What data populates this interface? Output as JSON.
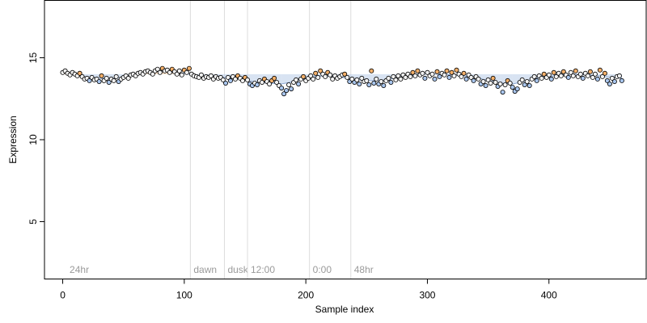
{
  "chart_data": {
    "type": "scatter",
    "title": "",
    "xlabel": "Sample index",
    "ylabel": "Expression",
    "xlim": [
      -15,
      480
    ],
    "ylim": [
      1.5,
      18.5
    ],
    "x_ticks": [
      0,
      100,
      200,
      300,
      400
    ],
    "y_ticks": [
      5,
      10,
      15
    ],
    "grid": false,
    "legend": "none",
    "colors": {
      "above_trend": "#f4b06a",
      "below_trend": "#a9c6ee",
      "neutral": "#f2f2f2",
      "trend_fill": "#b8cce8",
      "marker_edge": "#000000",
      "phase_line": "#dcdcdc",
      "phase_text": "#9a9a9a"
    },
    "phase_markers": [
      {
        "x": 3,
        "label": "24hr",
        "line": false
      },
      {
        "x": 105,
        "label": "dawn",
        "line": true
      },
      {
        "x": 133,
        "label": "dusk",
        "line": true
      },
      {
        "x": 152,
        "label": "12:00",
        "line": true
      },
      {
        "x": 203,
        "label": "0:00",
        "line": true
      },
      {
        "x": 237,
        "label": "48hr",
        "line": true
      }
    ],
    "trend": [
      [
        0,
        14.1
      ],
      [
        10,
        13.95
      ],
      [
        20,
        13.8
      ],
      [
        30,
        13.75
      ],
      [
        40,
        13.7
      ],
      [
        50,
        13.8
      ],
      [
        60,
        14.0
      ],
      [
        70,
        14.1
      ],
      [
        80,
        14.2
      ],
      [
        90,
        14.1
      ],
      [
        100,
        14.05
      ],
      [
        110,
        13.9
      ],
      [
        120,
        13.85
      ],
      [
        130,
        13.8
      ],
      [
        140,
        13.75
      ],
      [
        150,
        13.65
      ],
      [
        160,
        13.5
      ],
      [
        170,
        13.45
      ],
      [
        180,
        13.4
      ],
      [
        190,
        13.55
      ],
      [
        200,
        13.7
      ],
      [
        210,
        13.9
      ],
      [
        220,
        13.85
      ],
      [
        230,
        13.8
      ],
      [
        240,
        13.65
      ],
      [
        250,
        13.6
      ],
      [
        260,
        13.6
      ],
      [
        270,
        13.7
      ],
      [
        280,
        13.85
      ],
      [
        290,
        13.95
      ],
      [
        300,
        14.0
      ],
      [
        310,
        14.0
      ],
      [
        320,
        13.95
      ],
      [
        330,
        13.9
      ],
      [
        340,
        13.8
      ],
      [
        350,
        13.6
      ],
      [
        360,
        13.45
      ],
      [
        370,
        13.4
      ],
      [
        380,
        13.55
      ],
      [
        390,
        13.75
      ],
      [
        400,
        13.85
      ],
      [
        410,
        13.95
      ],
      [
        420,
        14.0
      ],
      [
        430,
        13.95
      ],
      [
        440,
        13.9
      ],
      [
        450,
        13.8
      ],
      [
        460,
        13.75
      ]
    ],
    "points": [
      [
        0,
        14.1
      ],
      [
        2,
        14.2
      ],
      [
        4,
        14.05
      ],
      [
        6,
        13.95
      ],
      [
        8,
        14.1
      ],
      [
        10,
        14.0
      ],
      [
        12,
        13.9
      ],
      [
        14,
        14.05
      ],
      [
        16,
        13.85
      ],
      [
        18,
        13.7
      ],
      [
        20,
        13.75
      ],
      [
        22,
        13.6
      ],
      [
        24,
        13.8
      ],
      [
        26,
        13.65
      ],
      [
        28,
        13.7
      ],
      [
        30,
        13.55
      ],
      [
        32,
        13.9
      ],
      [
        34,
        13.6
      ],
      [
        36,
        13.75
      ],
      [
        38,
        13.5
      ],
      [
        40,
        13.7
      ],
      [
        42,
        13.6
      ],
      [
        44,
        13.85
      ],
      [
        46,
        13.55
      ],
      [
        48,
        13.7
      ],
      [
        50,
        13.8
      ],
      [
        52,
        13.9
      ],
      [
        54,
        13.75
      ],
      [
        56,
        13.95
      ],
      [
        58,
        14.0
      ],
      [
        60,
        13.9
      ],
      [
        62,
        14.05
      ],
      [
        64,
        14.1
      ],
      [
        66,
        14.0
      ],
      [
        68,
        14.15
      ],
      [
        70,
        14.2
      ],
      [
        72,
        14.1
      ],
      [
        74,
        14.0
      ],
      [
        76,
        14.2
      ],
      [
        78,
        14.3
      ],
      [
        80,
        14.1
      ],
      [
        82,
        14.35
      ],
      [
        84,
        14.2
      ],
      [
        86,
        14.25
      ],
      [
        88,
        14.1
      ],
      [
        90,
        14.3
      ],
      [
        92,
        14.15
      ],
      [
        94,
        14.0
      ],
      [
        96,
        14.2
      ],
      [
        98,
        13.95
      ],
      [
        100,
        14.25
      ],
      [
        102,
        14.1
      ],
      [
        104,
        14.35
      ],
      [
        106,
        14.0
      ],
      [
        108,
        13.9
      ],
      [
        110,
        13.85
      ],
      [
        112,
        13.8
      ],
      [
        114,
        13.95
      ],
      [
        116,
        13.75
      ],
      [
        118,
        13.85
      ],
      [
        120,
        13.8
      ],
      [
        122,
        13.9
      ],
      [
        124,
        13.7
      ],
      [
        126,
        13.85
      ],
      [
        128,
        13.75
      ],
      [
        130,
        13.8
      ],
      [
        132,
        13.65
      ],
      [
        134,
        13.45
      ],
      [
        136,
        13.8
      ],
      [
        138,
        13.6
      ],
      [
        140,
        13.85
      ],
      [
        142,
        13.7
      ],
      [
        144,
        13.9
      ],
      [
        146,
        13.75
      ],
      [
        148,
        13.6
      ],
      [
        150,
        13.8
      ],
      [
        152,
        13.65
      ],
      [
        154,
        13.4
      ],
      [
        156,
        13.3
      ],
      [
        158,
        13.45
      ],
      [
        160,
        13.35
      ],
      [
        162,
        13.6
      ],
      [
        164,
        13.5
      ],
      [
        166,
        13.7
      ],
      [
        168,
        13.55
      ],
      [
        170,
        13.4
      ],
      [
        172,
        13.6
      ],
      [
        174,
        13.75
      ],
      [
        176,
        13.5
      ],
      [
        178,
        13.3
      ],
      [
        180,
        13.15
      ],
      [
        182,
        12.8
      ],
      [
        184,
        13.0
      ],
      [
        186,
        13.35
      ],
      [
        188,
        13.1
      ],
      [
        190,
        13.5
      ],
      [
        192,
        13.65
      ],
      [
        194,
        13.4
      ],
      [
        196,
        13.7
      ],
      [
        198,
        13.85
      ],
      [
        200,
        13.6
      ],
      [
        202,
        13.75
      ],
      [
        204,
        13.9
      ],
      [
        206,
        13.7
      ],
      [
        208,
        14.05
      ],
      [
        210,
        13.8
      ],
      [
        212,
        14.2
      ],
      [
        214,
        14.0
      ],
      [
        216,
        13.85
      ],
      [
        218,
        14.1
      ],
      [
        220,
        13.95
      ],
      [
        222,
        13.7
      ],
      [
        224,
        13.9
      ],
      [
        226,
        13.75
      ],
      [
        228,
        13.85
      ],
      [
        230,
        13.95
      ],
      [
        232,
        14.0
      ],
      [
        234,
        13.8
      ],
      [
        236,
        13.55
      ],
      [
        238,
        13.7
      ],
      [
        240,
        13.5
      ],
      [
        242,
        13.65
      ],
      [
        244,
        13.4
      ],
      [
        246,
        13.75
      ],
      [
        248,
        13.55
      ],
      [
        250,
        13.6
      ],
      [
        252,
        13.35
      ],
      [
        254,
        14.2
      ],
      [
        256,
        13.45
      ],
      [
        258,
        13.7
      ],
      [
        260,
        13.4
      ],
      [
        262,
        13.55
      ],
      [
        264,
        13.3
      ],
      [
        266,
        13.6
      ],
      [
        268,
        13.75
      ],
      [
        270,
        13.5
      ],
      [
        272,
        13.85
      ],
      [
        274,
        13.65
      ],
      [
        276,
        13.9
      ],
      [
        278,
        13.7
      ],
      [
        280,
        13.95
      ],
      [
        282,
        13.8
      ],
      [
        284,
        14.0
      ],
      [
        286,
        13.85
      ],
      [
        288,
        14.1
      ],
      [
        290,
        13.9
      ],
      [
        292,
        14.2
      ],
      [
        294,
        13.95
      ],
      [
        296,
        14.05
      ],
      [
        298,
        13.75
      ],
      [
        300,
        14.1
      ],
      [
        302,
        13.9
      ],
      [
        304,
        14.0
      ],
      [
        306,
        13.7
      ],
      [
        308,
        14.15
      ],
      [
        310,
        13.85
      ],
      [
        312,
        14.05
      ],
      [
        314,
        13.95
      ],
      [
        316,
        14.2
      ],
      [
        318,
        13.8
      ],
      [
        320,
        14.1
      ],
      [
        322,
        13.9
      ],
      [
        324,
        14.25
      ],
      [
        326,
        14.0
      ],
      [
        328,
        13.85
      ],
      [
        330,
        14.05
      ],
      [
        332,
        13.7
      ],
      [
        334,
        13.95
      ],
      [
        336,
        13.8
      ],
      [
        338,
        13.6
      ],
      [
        340,
        13.85
      ],
      [
        342,
        13.7
      ],
      [
        344,
        13.4
      ],
      [
        346,
        13.55
      ],
      [
        348,
        13.3
      ],
      [
        350,
        13.65
      ],
      [
        352,
        13.45
      ],
      [
        354,
        13.75
      ],
      [
        356,
        13.5
      ],
      [
        358,
        13.25
      ],
      [
        360,
        13.4
      ],
      [
        362,
        12.9
      ],
      [
        364,
        13.35
      ],
      [
        366,
        13.6
      ],
      [
        368,
        13.45
      ],
      [
        370,
        13.2
      ],
      [
        372,
        12.95
      ],
      [
        374,
        13.1
      ],
      [
        376,
        13.5
      ],
      [
        378,
        13.65
      ],
      [
        380,
        13.35
      ],
      [
        382,
        13.55
      ],
      [
        384,
        13.3
      ],
      [
        386,
        13.7
      ],
      [
        388,
        13.85
      ],
      [
        390,
        13.6
      ],
      [
        392,
        13.9
      ],
      [
        394,
        13.75
      ],
      [
        396,
        14.0
      ],
      [
        398,
        13.8
      ],
      [
        400,
        13.95
      ],
      [
        402,
        13.7
      ],
      [
        404,
        14.1
      ],
      [
        406,
        13.85
      ],
      [
        408,
        14.05
      ],
      [
        410,
        13.9
      ],
      [
        412,
        14.15
      ],
      [
        414,
        13.95
      ],
      [
        416,
        13.8
      ],
      [
        418,
        14.1
      ],
      [
        420,
        13.9
      ],
      [
        422,
        14.2
      ],
      [
        424,
        13.85
      ],
      [
        426,
        14.0
      ],
      [
        428,
        13.75
      ],
      [
        430,
        14.05
      ],
      [
        432,
        13.9
      ],
      [
        434,
        14.15
      ],
      [
        436,
        13.8
      ],
      [
        438,
        14.0
      ],
      [
        440,
        13.7
      ],
      [
        442,
        14.25
      ],
      [
        444,
        13.85
      ],
      [
        446,
        14.05
      ],
      [
        448,
        13.6
      ],
      [
        450,
        13.4
      ],
      [
        452,
        13.75
      ],
      [
        454,
        13.55
      ],
      [
        456,
        13.85
      ],
      [
        458,
        13.9
      ],
      [
        460,
        13.6
      ]
    ]
  }
}
